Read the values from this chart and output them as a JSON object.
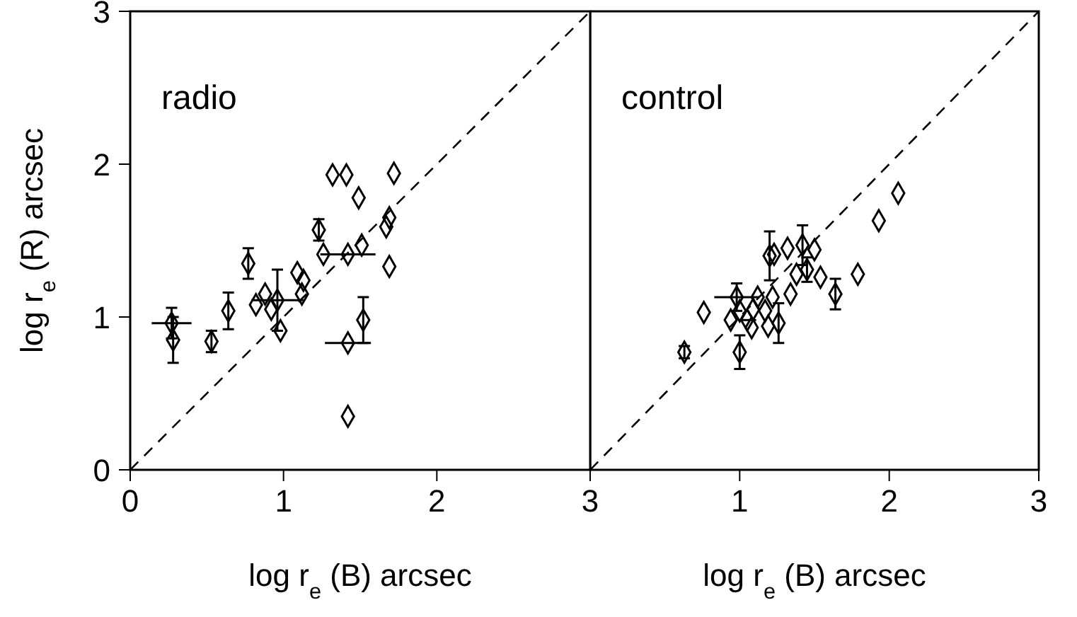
{
  "chart_data": [
    {
      "type": "scatter",
      "xlabel": "log r$_{e}$ (B) arcsec",
      "ylabel": "log r$_{e}$ (R) arcsec",
      "annotations": [
        "radio"
      ],
      "xlim": [
        0,
        3
      ],
      "ylim": [
        0,
        3
      ],
      "xticks": [
        0,
        1,
        2,
        3
      ],
      "yticks": [
        0,
        1,
        2,
        3
      ],
      "series": [
        {
          "color": "#000000",
          "marker": "diamond",
          "x": [
            0.27,
            0.28,
            0.53,
            0.64,
            0.77,
            0.82,
            0.88,
            0.92,
            0.96,
            0.98,
            1.09,
            1.13,
            1.12,
            1.23,
            1.32,
            1.41,
            1.26,
            1.42,
            1.42,
            1.42,
            1.49,
            1.72,
            1.51,
            1.69,
            1.67,
            1.69,
            1.52
          ],
          "values": [
            0.96,
            0.85,
            0.84,
            1.04,
            1.35,
            1.08,
            1.15,
            1.05,
            1.11,
            0.91,
            1.29,
            1.24,
            1.15,
            1.57,
            1.93,
            1.93,
            1.41,
            1.41,
            0.83,
            0.35,
            1.78,
            1.94,
            1.47,
            1.65,
            1.59,
            1.33,
            0.98
          ],
          "errors": [
            0.1,
            0.15,
            0.07,
            0.12,
            0.1,
            null,
            null,
            null,
            0.2,
            null,
            null,
            null,
            null,
            0.07,
            null,
            null,
            null,
            null,
            null,
            null,
            null,
            null,
            null,
            null,
            null,
            null,
            0.15
          ],
          "xerrors": [
            0.13,
            null,
            null,
            null,
            null,
            null,
            null,
            null,
            0.17,
            null,
            null,
            null,
            null,
            null,
            null,
            null,
            null,
            0.18,
            0.15,
            null,
            null,
            null,
            null,
            null,
            null,
            null,
            null
          ]
        },
        {
          "type": "line",
          "line_style": "dashed",
          "marker": "none",
          "color": "#000000",
          "x": [
            0,
            3
          ],
          "values": [
            0,
            3
          ]
        }
      ]
    },
    {
      "type": "scatter",
      "xlabel": "log r$_{e}$ (B) arcsec",
      "annotations": [
        "control"
      ],
      "xlim": [
        0,
        3
      ],
      "ylim": [
        0,
        3
      ],
      "xticks": [
        {
          "value": 0,
          "label": null
        },
        1,
        2,
        3
      ],
      "yticks": [
        0,
        1,
        2,
        3
      ],
      "tick_labels": "x",
      "series": [
        {
          "color": "#000000",
          "marker": "diamond",
          "x": [
            0.63,
            0.76,
            1.2,
            0.98,
            0.94,
            1.0,
            1.0,
            1.09,
            1.12,
            1.08,
            1.17,
            1.22,
            1.19,
            1.05,
            2.06,
            1.93,
            1.32,
            1.42,
            1.5,
            1.38,
            1.45,
            1.54,
            1.79,
            1.64,
            1.34,
            1.26,
            1.23
          ],
          "values": [
            0.77,
            1.03,
            1.4,
            1.13,
            0.98,
            1.04,
            0.77,
            1.05,
            1.13,
            0.93,
            1.04,
            1.13,
            0.94,
            0.98,
            1.81,
            1.63,
            1.45,
            1.47,
            1.44,
            1.28,
            1.31,
            1.26,
            1.28,
            1.15,
            1.15,
            0.96,
            1.41
          ],
          "errors": [
            0.04,
            null,
            0.16,
            0.09,
            null,
            null,
            0.11,
            null,
            null,
            null,
            null,
            null,
            null,
            null,
            null,
            null,
            null,
            0.13,
            null,
            null,
            0.08,
            null,
            null,
            0.1,
            null,
            0.13,
            null
          ],
          "xerrors": [
            null,
            null,
            null,
            0.15,
            null,
            null,
            null,
            null,
            null,
            null,
            null,
            null,
            null,
            0.06,
            null,
            null,
            null,
            null,
            null,
            null,
            null,
            null,
            null,
            null,
            null,
            null,
            null
          ]
        },
        {
          "type": "line",
          "line_style": "dashed",
          "marker": "none",
          "color": "#000000",
          "x": [
            0,
            3
          ],
          "values": [
            0,
            3
          ]
        }
      ]
    }
  ]
}
